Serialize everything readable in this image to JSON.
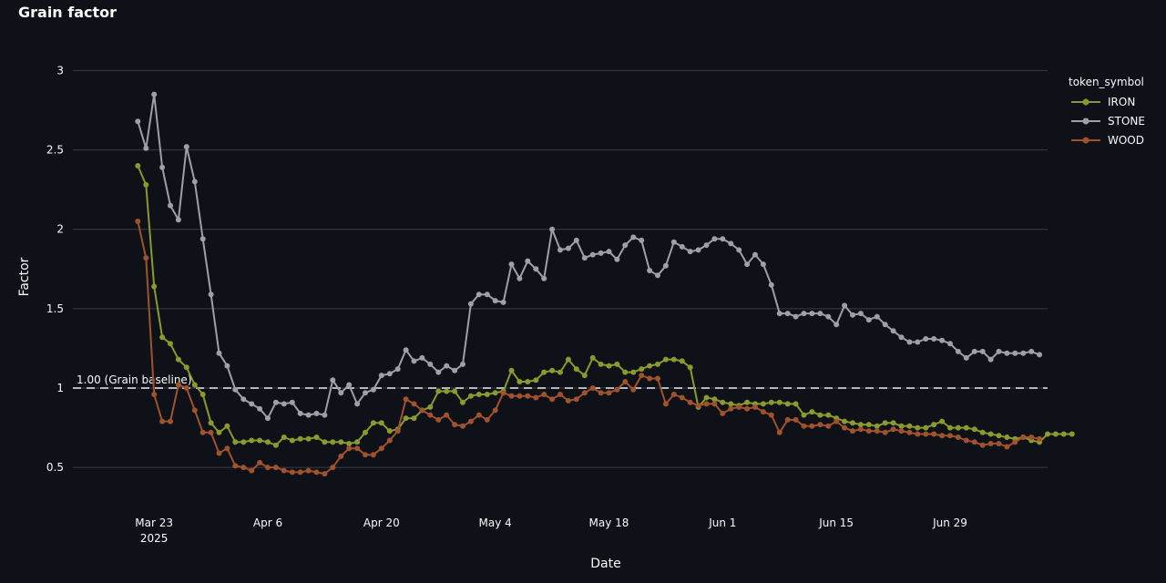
{
  "header": {
    "title": "Grain factor"
  },
  "colors": {
    "background": "#0e1117",
    "grid": "#3a3d45",
    "baseline": "#b5b7bc",
    "IRON": "#8a9a2e",
    "STONE": "#9ea0a6",
    "WOOD": "#a0522d"
  },
  "chart_data": {
    "type": "line",
    "title": "Grain factor",
    "xlabel": "Date",
    "ylabel": "Factor",
    "ylim": [
      0.3,
      3.1
    ],
    "yticks": [
      0.5,
      1,
      1.5,
      2,
      2.5,
      3
    ],
    "ytick_labels": [
      "0.5",
      "1",
      "1.5",
      "2",
      "2.5",
      "3"
    ],
    "xlim": [
      "2025-03-13",
      "2025-07-11"
    ],
    "xticks": [
      "2025-03-23",
      "2025-04-06",
      "2025-04-20",
      "2025-05-04",
      "2025-05-18",
      "2025-06-01",
      "2025-06-15",
      "2025-06-29"
    ],
    "xtick_labels": [
      "Mar 23",
      "Apr 6",
      "Apr 20",
      "May 4",
      "May 18",
      "Jun 1",
      "Jun 15",
      "Jun 29"
    ],
    "xtick_year": "2025",
    "grid": true,
    "legend": {
      "title": "token_symbol",
      "position": "right"
    },
    "x_start": "2025-03-21",
    "x_step_days": 1,
    "baseline": {
      "y": 1,
      "label": "1.00 (Grain baseline)",
      "style": "dashed"
    },
    "series": [
      {
        "name": "IRON",
        "values": [
          2.4,
          2.28,
          1.64,
          1.32,
          1.28,
          1.18,
          1.13,
          1.02,
          0.96,
          0.78,
          0.72,
          0.76,
          0.66,
          0.66,
          0.67,
          0.67,
          0.66,
          0.64,
          0.69,
          0.67,
          0.68,
          0.68,
          0.69,
          0.66,
          0.66,
          0.66,
          0.65,
          0.66,
          0.72,
          0.78,
          0.78,
          0.73,
          0.74,
          0.81,
          0.81,
          0.86,
          0.88,
          0.98,
          0.98,
          0.98,
          0.91,
          0.95,
          0.96,
          0.96,
          0.97,
          0.98,
          1.11,
          1.04,
          1.04,
          1.05,
          1.1,
          1.11,
          1.1,
          1.18,
          1.12,
          1.08,
          1.19,
          1.15,
          1.14,
          1.15,
          1.1,
          1.1,
          1.12,
          1.14,
          1.15,
          1.18,
          1.18,
          1.17,
          1.13,
          0.88,
          0.94,
          0.93,
          0.91,
          0.9,
          0.89,
          0.91,
          0.9,
          0.9,
          0.91,
          0.91,
          0.9,
          0.9,
          0.83,
          0.85,
          0.83,
          0.83,
          0.81,
          0.79,
          0.78,
          0.77,
          0.77,
          0.76,
          0.78,
          0.78,
          0.76,
          0.76,
          0.75,
          0.75,
          0.77,
          0.79,
          0.75,
          0.75,
          0.75,
          0.74,
          0.72,
          0.71,
          0.7,
          0.69,
          0.68,
          0.69,
          0.67,
          0.66,
          0.71,
          0.71,
          0.71,
          0.71
        ],
        "color": "#8a9a2e"
      },
      {
        "name": "STONE",
        "values": [
          2.68,
          2.51,
          2.85,
          2.39,
          2.15,
          2.06,
          2.52,
          2.3,
          1.94,
          1.59,
          1.22,
          1.14,
          0.99,
          0.93,
          0.9,
          0.87,
          0.81,
          0.91,
          0.9,
          0.91,
          0.84,
          0.83,
          0.84,
          0.83,
          1.05,
          0.97,
          1.02,
          0.9,
          0.97,
          0.99,
          1.08,
          1.09,
          1.12,
          1.24,
          1.17,
          1.19,
          1.15,
          1.1,
          1.14,
          1.11,
          1.15,
          1.53,
          1.59,
          1.59,
          1.55,
          1.54,
          1.78,
          1.69,
          1.8,
          1.75,
          1.69,
          2.0,
          1.87,
          1.88,
          1.93,
          1.82,
          1.84,
          1.85,
          1.86,
          1.81,
          1.9,
          1.95,
          1.93,
          1.74,
          1.71,
          1.77,
          1.92,
          1.89,
          1.86,
          1.87,
          1.9,
          1.94,
          1.94,
          1.91,
          1.87,
          1.78,
          1.84,
          1.78,
          1.65,
          1.47,
          1.47,
          1.45,
          1.47,
          1.47,
          1.47,
          1.45,
          1.4,
          1.52,
          1.46,
          1.47,
          1.43,
          1.45,
          1.4,
          1.36,
          1.32,
          1.29,
          1.29,
          1.31,
          1.31,
          1.3,
          1.28,
          1.23,
          1.19,
          1.23,
          1.23,
          1.18,
          1.23,
          1.22,
          1.22,
          1.22,
          1.23,
          1.21
        ],
        "color": "#9ea0a6"
      },
      {
        "name": "WOOD",
        "values": [
          2.05,
          1.82,
          0.96,
          0.79,
          0.79,
          1.02,
          1.0,
          0.86,
          0.72,
          0.72,
          0.59,
          0.62,
          0.51,
          0.5,
          0.48,
          0.53,
          0.5,
          0.5,
          0.48,
          0.47,
          0.47,
          0.48,
          0.47,
          0.46,
          0.5,
          0.57,
          0.62,
          0.62,
          0.58,
          0.58,
          0.62,
          0.67,
          0.73,
          0.93,
          0.9,
          0.86,
          0.83,
          0.8,
          0.83,
          0.77,
          0.76,
          0.79,
          0.83,
          0.8,
          0.86,
          0.97,
          0.95,
          0.95,
          0.95,
          0.94,
          0.96,
          0.93,
          0.96,
          0.92,
          0.93,
          0.97,
          1.0,
          0.97,
          0.97,
          0.99,
          1.04,
          0.99,
          1.08,
          1.06,
          1.06,
          0.9,
          0.96,
          0.94,
          0.91,
          0.89,
          0.9,
          0.9,
          0.84,
          0.87,
          0.88,
          0.87,
          0.88,
          0.85,
          0.83,
          0.72,
          0.8,
          0.8,
          0.76,
          0.76,
          0.77,
          0.76,
          0.79,
          0.75,
          0.73,
          0.74,
          0.73,
          0.73,
          0.72,
          0.74,
          0.73,
          0.72,
          0.71,
          0.71,
          0.71,
          0.7,
          0.7,
          0.69,
          0.67,
          0.66,
          0.64,
          0.65,
          0.65,
          0.63,
          0.66,
          0.69,
          0.69,
          0.68
        ],
        "color": "#a0522d"
      }
    ]
  }
}
